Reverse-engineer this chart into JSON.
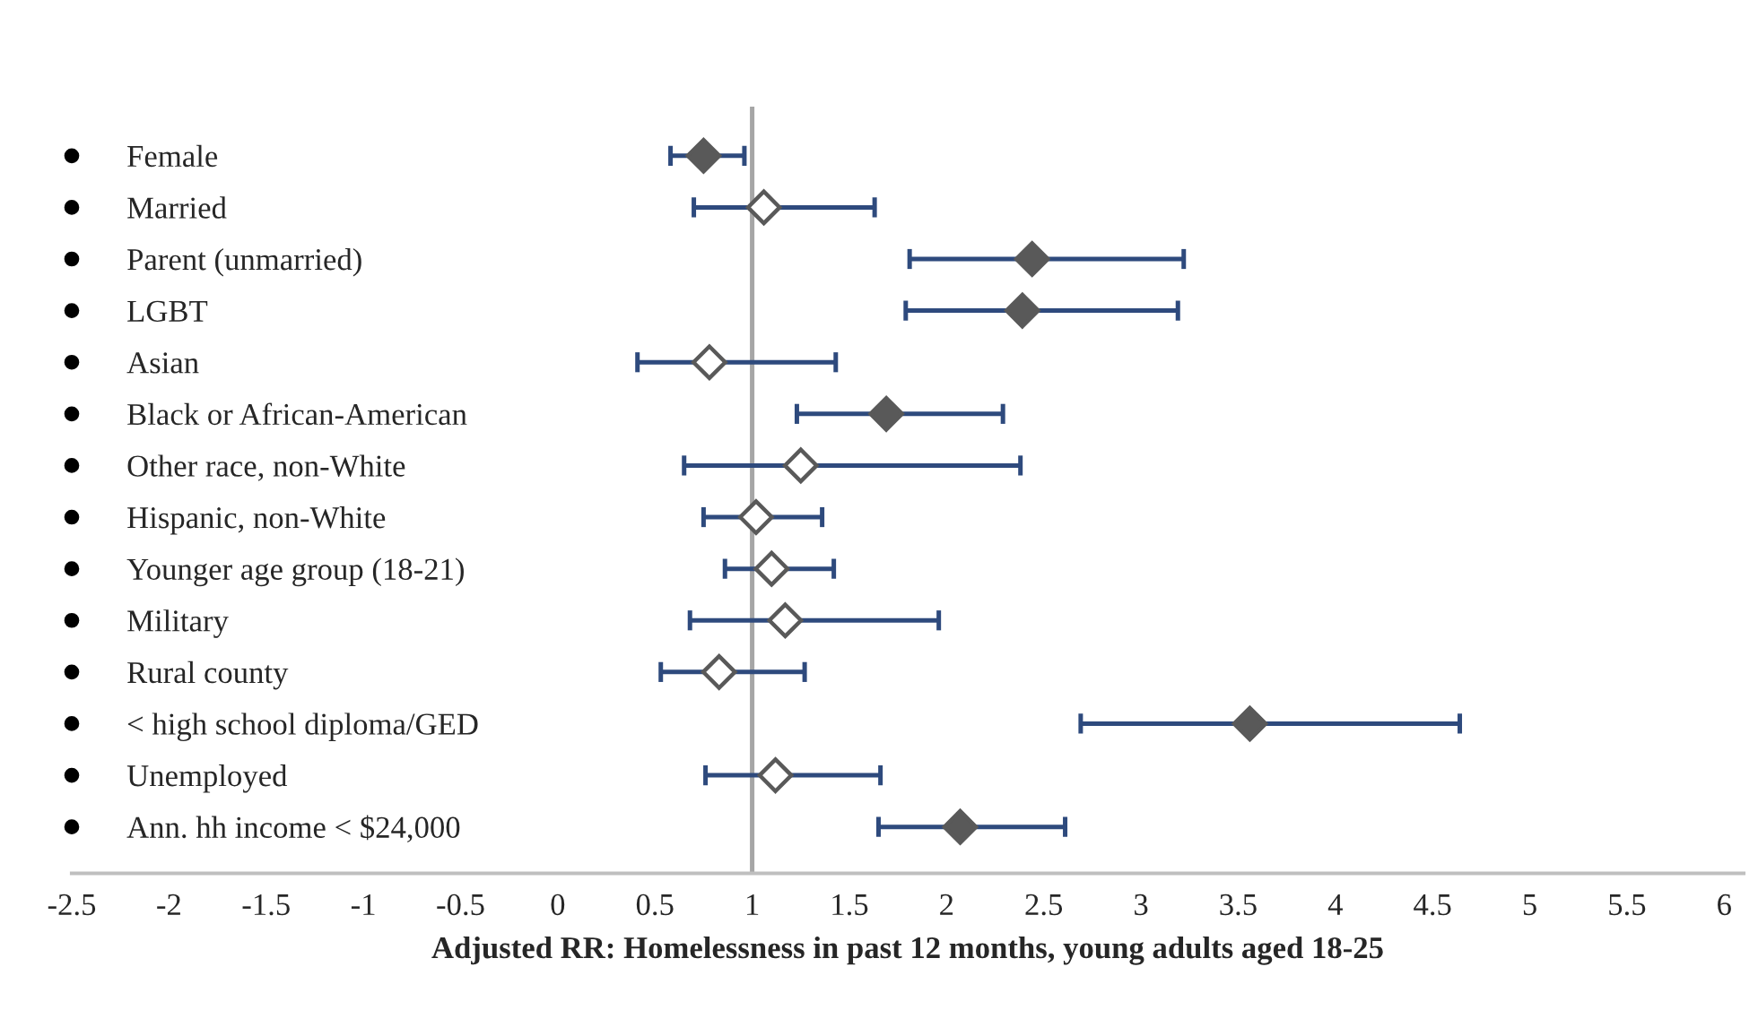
{
  "chart_data": {
    "type": "scatter",
    "orientation": "horizontal",
    "xlabel": "Adjusted RR: Homelessness in past 12 months, young adults aged 18-25",
    "categories": [
      "Female",
      "Married",
      "Parent (unmarried)",
      "LGBT",
      "Asian",
      "Black or African-American",
      "Other race, non-White",
      "Hispanic, non-White",
      "Younger age group (18-21)",
      "Military",
      "Rural county",
      "< high school diploma/GED",
      "Unemployed",
      "Ann. hh income < $24,000"
    ],
    "values": [
      0.75,
      1.06,
      2.44,
      2.39,
      0.78,
      1.69,
      1.25,
      1.02,
      1.1,
      1.17,
      0.83,
      3.56,
      1.12,
      2.07
    ],
    "errors": [
      [
        0.58,
        0.96
      ],
      [
        0.7,
        1.63
      ],
      [
        1.81,
        3.22
      ],
      [
        1.79,
        3.19
      ],
      [
        0.41,
        1.43
      ],
      [
        1.23,
        2.29
      ],
      [
        0.65,
        2.38
      ],
      [
        0.75,
        1.36
      ],
      [
        0.86,
        1.42
      ],
      [
        0.68,
        1.96
      ],
      [
        0.53,
        1.27
      ],
      [
        2.69,
        4.64
      ],
      [
        0.76,
        1.66
      ],
      [
        1.65,
        2.61
      ]
    ],
    "colors": [
      "#595959",
      "#ffffff",
      "#595959",
      "#595959",
      "#ffffff",
      "#595959",
      "#ffffff",
      "#ffffff",
      "#ffffff",
      "#ffffff",
      "#ffffff",
      "#595959",
      "#ffffff",
      "#595959"
    ],
    "marker": "diamond",
    "xlim": [
      -2.5,
      6.1
    ],
    "xticks": [
      -2.5,
      -2,
      -1.5,
      -1,
      -0.5,
      0,
      0.5,
      1,
      1.5,
      2,
      2.5,
      3,
      3.5,
      4,
      4.5,
      5,
      5.5,
      6
    ],
    "ref_lines": [
      {
        "axis": "x",
        "value": 1,
        "color": "#a6a6a6"
      }
    ],
    "grid": false,
    "legend": false
  }
}
